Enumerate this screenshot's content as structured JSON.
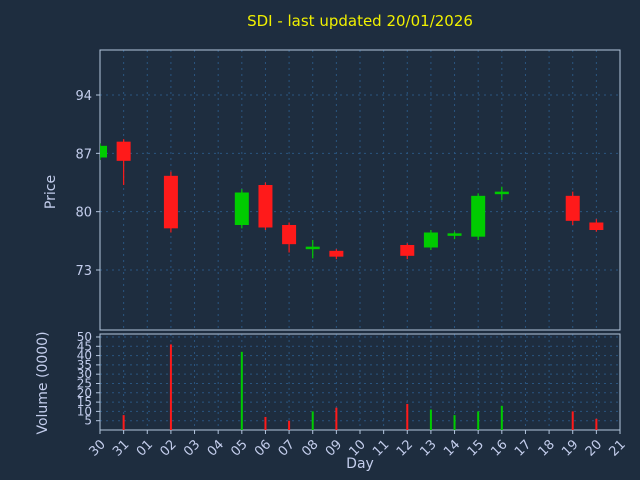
{
  "chart_data": {
    "type": "candlestick+volume",
    "title": "SDI - last updated 20/01/2026",
    "xlabel": "Day",
    "ylabel_price": "Price",
    "ylabel_volume": "Volume (0000)",
    "x_categories": [
      "30",
      "31",
      "01",
      "02",
      "03",
      "04",
      "05",
      "06",
      "07",
      "08",
      "09",
      "10",
      "11",
      "12",
      "13",
      "14",
      "15",
      "16",
      "17",
      "18",
      "19",
      "20",
      "21"
    ],
    "price_ticks": [
      94,
      87,
      80,
      73
    ],
    "volume_ticks": [
      50,
      45,
      40,
      35,
      30,
      25,
      20,
      15,
      10,
      5
    ],
    "price_ylim": [
      65.8,
      99.4
    ],
    "volume_ylim": [
      0,
      51.6
    ],
    "grid": true,
    "candles": [
      {
        "day": "30",
        "open": 86.5,
        "high": 88.2,
        "low": 86.2,
        "close": 87.9
      },
      {
        "day": "31",
        "open": 88.4,
        "high": 88.7,
        "low": 83.2,
        "close": 86.1
      },
      {
        "day": "02",
        "open": 84.3,
        "high": 84.8,
        "low": 77.5,
        "close": 78.0
      },
      {
        "day": "05",
        "open": 78.4,
        "high": 82.7,
        "low": 78.0,
        "close": 82.3
      },
      {
        "day": "06",
        "open": 83.2,
        "high": 83.5,
        "low": 77.8,
        "close": 78.1
      },
      {
        "day": "07",
        "open": 78.4,
        "high": 78.7,
        "low": 75.1,
        "close": 76.1
      },
      {
        "day": "08",
        "open": 75.5,
        "high": 76.6,
        "low": 74.4,
        "close": 75.8
      },
      {
        "day": "09",
        "open": 75.3,
        "high": 75.5,
        "low": 74.3,
        "close": 74.6
      },
      {
        "day": "12",
        "open": 76.0,
        "high": 76.2,
        "low": 74.3,
        "close": 74.7
      },
      {
        "day": "13",
        "open": 75.7,
        "high": 77.8,
        "low": 75.4,
        "close": 77.5
      },
      {
        "day": "14",
        "open": 77.1,
        "high": 77.6,
        "low": 76.7,
        "close": 77.4
      },
      {
        "day": "15",
        "open": 77.0,
        "high": 82.2,
        "low": 76.6,
        "close": 81.9
      },
      {
        "day": "16",
        "open": 82.1,
        "high": 83.0,
        "low": 81.4,
        "close": 82.4
      },
      {
        "day": "19",
        "open": 81.9,
        "high": 82.4,
        "low": 78.4,
        "close": 78.9
      },
      {
        "day": "20",
        "open": 78.7,
        "high": 79.1,
        "low": 77.6,
        "close": 77.8
      }
    ],
    "volumes": [
      {
        "day": "31",
        "value": 8
      },
      {
        "day": "02",
        "value": 46
      },
      {
        "day": "05",
        "value": 42
      },
      {
        "day": "06",
        "value": 7
      },
      {
        "day": "07",
        "value": 5
      },
      {
        "day": "08",
        "value": 10
      },
      {
        "day": "09",
        "value": 12
      },
      {
        "day": "12",
        "value": 14
      },
      {
        "day": "13",
        "value": 11
      },
      {
        "day": "14",
        "value": 8
      },
      {
        "day": "15",
        "value": 10
      },
      {
        "day": "16",
        "value": 13
      },
      {
        "day": "19",
        "value": 10
      },
      {
        "day": "20",
        "value": 6
      }
    ],
    "colors": {
      "background": "#1e2d3f",
      "up": "#00cc00",
      "down": "#ff1a1a",
      "grid": "#2a5580",
      "axis": "#b4c6de",
      "text": "#c3cdec",
      "title": "#f0f000"
    },
    "legend": "none"
  }
}
